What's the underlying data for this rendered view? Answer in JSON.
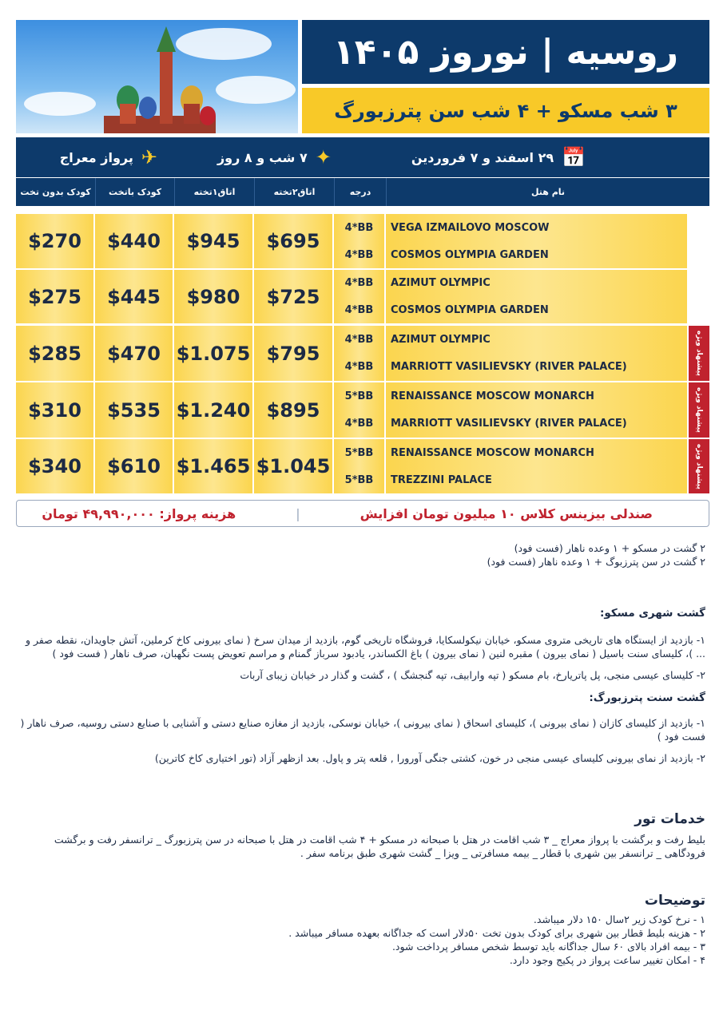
{
  "header": {
    "title": "روسیه | نوروز ۱۴۰۵",
    "subtitle": "۳ شب مسکو + ۴ شب سن پترزبورگ"
  },
  "info": {
    "dates": "۲۹ اسفند و ۷ فروردین",
    "duration": "۷ شب و ۸ روز",
    "airline": "پرواز معراج",
    "icons": [
      "calendar-icon",
      "sparkle-icon",
      "airplane-icon"
    ]
  },
  "table": {
    "headers": {
      "hotel": "نام هتل",
      "grade": "درجه",
      "double": "اتاق۲تخته",
      "single": "اتاق۱تخته",
      "child_bed": "کودک باتخت",
      "child_nobed": "کودک بدون تخت"
    },
    "rows": [
      {
        "hotels": [
          "VEGA IZMAILOVO MOSCOW",
          "COSMOS OLYMPIA GARDEN"
        ],
        "grades": [
          "4*BB",
          "4*BB"
        ],
        "double": "$695",
        "single": "$945",
        "child_bed": "$440",
        "child_nobed": "$270",
        "badge": ""
      },
      {
        "hotels": [
          "AZIMUT OLYMPIC",
          "COSMOS OLYMPIA GARDEN"
        ],
        "grades": [
          "4*BB",
          "4*BB"
        ],
        "double": "$725",
        "single": "$980",
        "child_bed": "$445",
        "child_nobed": "$275",
        "badge": ""
      },
      {
        "hotels": [
          "AZIMUT OLYMPIC",
          "MARRIOTT VASILIEVSKY (RIVER PALACE)"
        ],
        "grades": [
          "4*BB",
          "4*BB"
        ],
        "double": "$795",
        "single": "$1.075",
        "child_bed": "$470",
        "child_nobed": "$285",
        "badge": "پیشنهاد ویژه"
      },
      {
        "hotels": [
          "RENAISSANCE MOSCOW MONARCH",
          "MARRIOTT VASILIEVSKY (RIVER PALACE)"
        ],
        "grades": [
          "5*BB",
          "4*BB"
        ],
        "double": "$895",
        "single": "$1.240",
        "child_bed": "$535",
        "child_nobed": "$310",
        "badge": "پیشنهاد ویژه"
      },
      {
        "hotels": [
          "RENAISSANCE MOSCOW MONARCH",
          "TREZZINI PALACE"
        ],
        "grades": [
          "5*BB",
          "5*BB"
        ],
        "double": "$1.045",
        "single": "$1.465",
        "child_bed": "$610",
        "child_nobed": "$340",
        "badge": "پیشنهاد ویژه"
      }
    ]
  },
  "notes": {
    "business": "صندلی بیزینس کلاس ۱۰ میلیون تومان افزایش",
    "flight_cost": "هزینه پرواز: ۴۹,۹۹۰,۰۰۰ تومان"
  },
  "extras": [
    "۲ گشت در مسکو + ۱ وعده ناهار (فست فود)",
    "۲ گشت در سن پترزبوگ + ۱ وعده ناهار (فست فود)"
  ],
  "moscow": {
    "title": "گشت شهری مسکو:",
    "items": [
      "۱- بازدید از ایستگاه های تاریخی متروی مسکو، خیابان نیکولسکایا، فروشگاه تاریخی گوم، بازدید از میدان سرخ ( نمای بیرونی کاخ کرملین، آتش جاویدان، نقطه صفر و ... )، کلیسای سنت باسیل ( نمای بیرون ) مقبره لنین ( نمای بیرون ) باغ الکساندر، یادبود سرباز گمنام و مراسم تعویض پست نگهبان، صرف ناهار ( فست فود )",
      "۲- کلیسای عیسی منجی، پل پاتریارخ، بام مسکو ( تپه وارابیف، تپه گنجشگ ) ، گشت و گذار در خیابان زیبای آربات"
    ]
  },
  "spb": {
    "title": "گشت سنت پترزبورگ:",
    "items": [
      "۱- بازدید از کلیسای کازان ( نمای بیرونی )، کلیسای اسحاق ( نمای بیرونی )، خیابان نوسکی، بازدید از مغازه صنایع دستی و آشنایی با صنایع دستی روسیه، صرف ناهار ( فست فود )",
      "۲- بازدید از نمای بیرونی کلیسای عیسی منجی در خون، کشتی جنگی آورورا , قلعه پتر و پاول. بعد ازظهر آزاد (تور اختیاری کاخ کاترین)"
    ]
  },
  "services": {
    "title": "خدمات تور",
    "text": "بلیط رفت و برگشت با پرواز معراج _ ۳ شب اقامت در هتل با صبحانه در مسکو + ۴ شب اقامت در هتل با صبحانه در سن پترزبورگ _ ترانسفر رفت و برگشت فرودگاهی _ ترانسفر بین شهری با قطار _ بیمه مسافرتی _ ویزا _ گشت شهری طبق برنامه سفر ."
  },
  "remarks": {
    "title": "توضیحات",
    "items": [
      "۱ - نرخ کودک زیر ۲سال ۱۵۰ دلار میباشد.",
      "۲ - هزینه بلیط قطار بین شهری برای کودک بدون تخت ۵۰دلار است که جداگانه بعهده مسافر میباشد .",
      "۳ - بیمه افراد بالای ۶۰ سال جداگانه باید توسط شخص مسافر پرداخت شود.",
      "۴ - امکان تغییر ساعت پرواز در پکیج وجود دارد."
    ]
  },
  "colors": {
    "navy": "#0d3a6b",
    "yellow": "#f8c928",
    "red": "#c0222e"
  }
}
